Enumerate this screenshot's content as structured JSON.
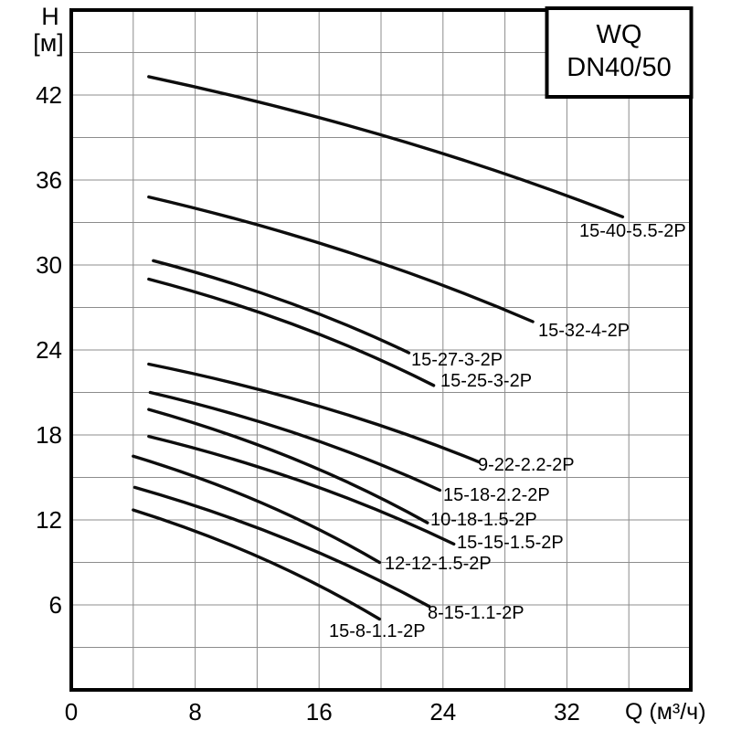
{
  "title_box": {
    "line1": "WQ",
    "line2": "DN40/50"
  },
  "y_axis": {
    "label_line1": "H",
    "label_line2": "[м]",
    "ticks": [
      42,
      36,
      30,
      24,
      18,
      12,
      6
    ]
  },
  "x_axis": {
    "ticks": [
      0,
      8,
      16,
      24,
      32
    ],
    "unit_label": "Q (м³/ч)"
  },
  "colors": {
    "curve": "#0d0d0d",
    "grid": "#8c8c8c",
    "background": "#ffffff"
  },
  "chart_data": {
    "type": "line",
    "title": "WQ DN40/50",
    "xlabel": "Q (м³/ч)",
    "ylabel": "H [м]",
    "xlim": [
      0,
      40
    ],
    "ylim": [
      0,
      48
    ],
    "x_gridline_step": 4,
    "y_gridline_step": 3,
    "x_tick_step": 8,
    "y_tick_step": 6,
    "grid": true,
    "legend_position": "inline-labels",
    "series": [
      {
        "name": "15-40-5.5-2P",
        "points": [
          [
            5.0,
            43.3
          ],
          [
            20.9,
            38.9
          ],
          [
            35.6,
            33.4
          ]
        ]
      },
      {
        "name": "15-32-4-2P",
        "points": [
          [
            5.0,
            34.8
          ],
          [
            17.9,
            30.9
          ],
          [
            29.8,
            26.0
          ]
        ]
      },
      {
        "name": "15-27-3-2P",
        "points": [
          [
            5.3,
            30.3
          ],
          [
            13.9,
            27.4
          ],
          [
            21.8,
            23.8
          ]
        ]
      },
      {
        "name": "15-25-3-2P",
        "points": [
          [
            5.0,
            29.0
          ],
          [
            14.6,
            25.7
          ],
          [
            23.4,
            21.5
          ]
        ]
      },
      {
        "name": "9-22-2.2-2P",
        "points": [
          [
            5.0,
            23.0
          ],
          [
            16.1,
            20.0
          ],
          [
            26.3,
            16.1
          ]
        ]
      },
      {
        "name": "15-18-2.2-2P",
        "points": [
          [
            5.1,
            21.0
          ],
          [
            14.8,
            18.0
          ],
          [
            23.8,
            14.1
          ]
        ]
      },
      {
        "name": "10-18-1.5-2P",
        "points": [
          [
            5.0,
            19.8
          ],
          [
            14.4,
            16.3
          ],
          [
            23.0,
            11.8
          ]
        ]
      },
      {
        "name": "15-15-1.5-2P",
        "points": [
          [
            5.0,
            17.9
          ],
          [
            15.2,
            14.6
          ],
          [
            24.7,
            10.3
          ]
        ]
      },
      {
        "name": "12-12-1.5-2P",
        "points": [
          [
            4.0,
            16.5
          ],
          [
            12.3,
            13.2
          ],
          [
            19.9,
            9.0
          ]
        ]
      },
      {
        "name": "8-15-1.1-2P",
        "points": [
          [
            4.1,
            14.3
          ],
          [
            14.0,
            10.6
          ],
          [
            23.1,
            5.9
          ]
        ]
      },
      {
        "name": "15-8-1.1-2P",
        "points": [
          [
            4.0,
            12.7
          ],
          [
            12.3,
            9.3
          ],
          [
            19.9,
            5.0
          ]
        ]
      }
    ]
  }
}
